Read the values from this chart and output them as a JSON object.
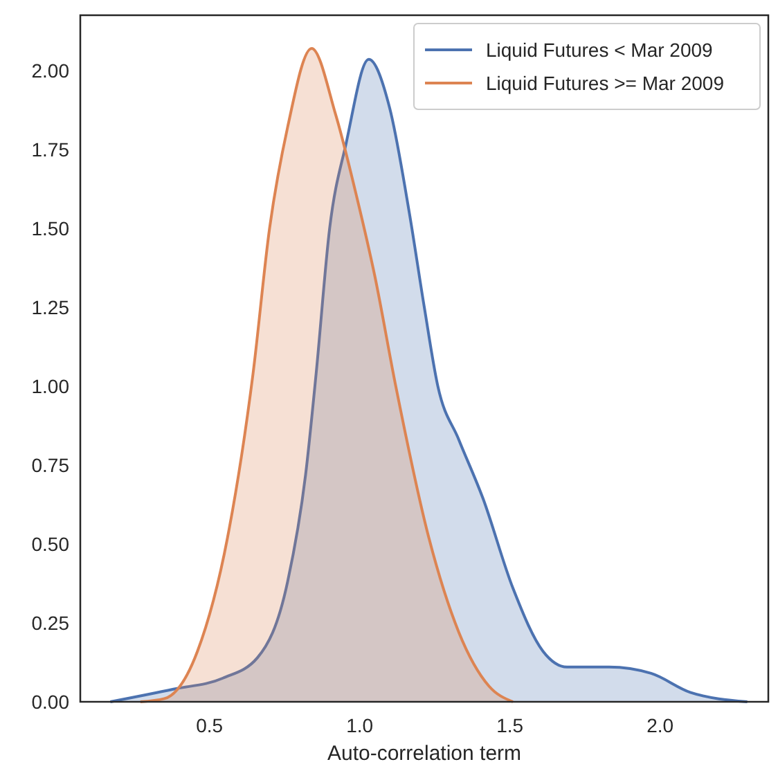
{
  "chart_data": {
    "type": "area",
    "xlabel": "Auto-correlation term",
    "xlim": [
      0.07,
      2.36
    ],
    "ylim": [
      0,
      2.175
    ],
    "xticks": [
      0.5,
      {
        "value": 1,
        "label": "1.0"
      },
      1.5,
      {
        "value": 2,
        "label": "2.0"
      }
    ],
    "yticks": [
      {
        "value": 0,
        "label": "0.00"
      },
      0.25,
      {
        "value": 0.5,
        "label": "0.50"
      },
      0.75,
      {
        "value": 1,
        "label": "1.00"
      },
      1.25,
      {
        "value": 1.5,
        "label": "1.50"
      },
      1.75,
      {
        "value": 2,
        "label": "2.00"
      }
    ],
    "grid": false,
    "legend": "top right",
    "series": [
      {
        "name": "Liquid Futures < Mar 2009",
        "color": "#4c72b0",
        "x": [
          0.17,
          0.38,
          0.545,
          0.66,
          0.76,
          0.82,
          0.855,
          0.9,
          0.955,
          1.03,
          1.1,
          1.165,
          1.215,
          1.26,
          1.33,
          1.41,
          1.51,
          1.61,
          1.69,
          1.83,
          1.97,
          2.1,
          2.29
        ],
        "values": [
          0,
          0.04,
          0.075,
          0.14,
          0.38,
          0.72,
          1.04,
          1.5,
          1.77,
          2.035,
          1.88,
          1.55,
          1.25,
          1,
          0.83,
          0.645,
          0.36,
          0.16,
          0.11,
          0.11,
          0.09,
          0.03,
          0
        ]
      },
      {
        "name": "Liquid Futures >= Mar 2009",
        "color": "#dd8452",
        "x": [
          0.27,
          0.35,
          0.46,
          0.56,
          0.645,
          0.7,
          0.76,
          0.84,
          0.92,
          0.99,
          1.05,
          1.12,
          1.23,
          1.33,
          1.43,
          1.51
        ],
        "values": [
          0,
          0.01,
          0.16,
          0.52,
          1.04,
          1.5,
          1.82,
          2.07,
          1.86,
          1.6,
          1.35,
          1,
          0.52,
          0.22,
          0.05,
          0
        ]
      }
    ]
  }
}
